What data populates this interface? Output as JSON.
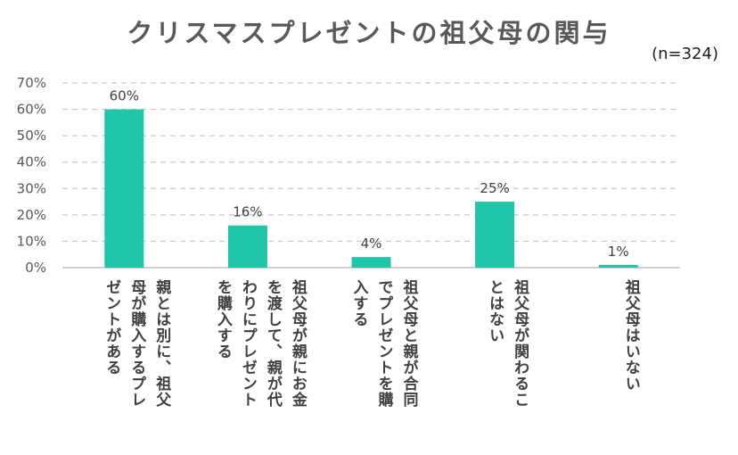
{
  "title": "クリスマスプレゼントの祖父母の関与",
  "note": "(n=324)",
  "colors": {
    "bar": "#20c4a6",
    "grid": "#c8c8c8",
    "axis": "#bfbfbf"
  },
  "chart_data": {
    "type": "bar",
    "title": "クリスマスプレゼントの祖父母の関与",
    "categories": [
      "親とは別に、祖父母が購入するプレゼントがある",
      "祖父母が親にお金を渡して、親が代わりにプレゼントを購入する",
      "祖父母と親が合同でプレゼントを購入する",
      "祖父母が関わることはない",
      "祖父母はいない"
    ],
    "values": [
      60,
      16,
      4,
      25,
      1
    ],
    "value_labels": [
      "60%",
      "16%",
      "4%",
      "25%",
      "1%"
    ],
    "ylim": [
      0,
      70
    ],
    "yticks": [
      "0%",
      "10%",
      "20%",
      "30%",
      "40%",
      "50%",
      "60%",
      "70%"
    ],
    "grid": true,
    "legend": "none"
  }
}
